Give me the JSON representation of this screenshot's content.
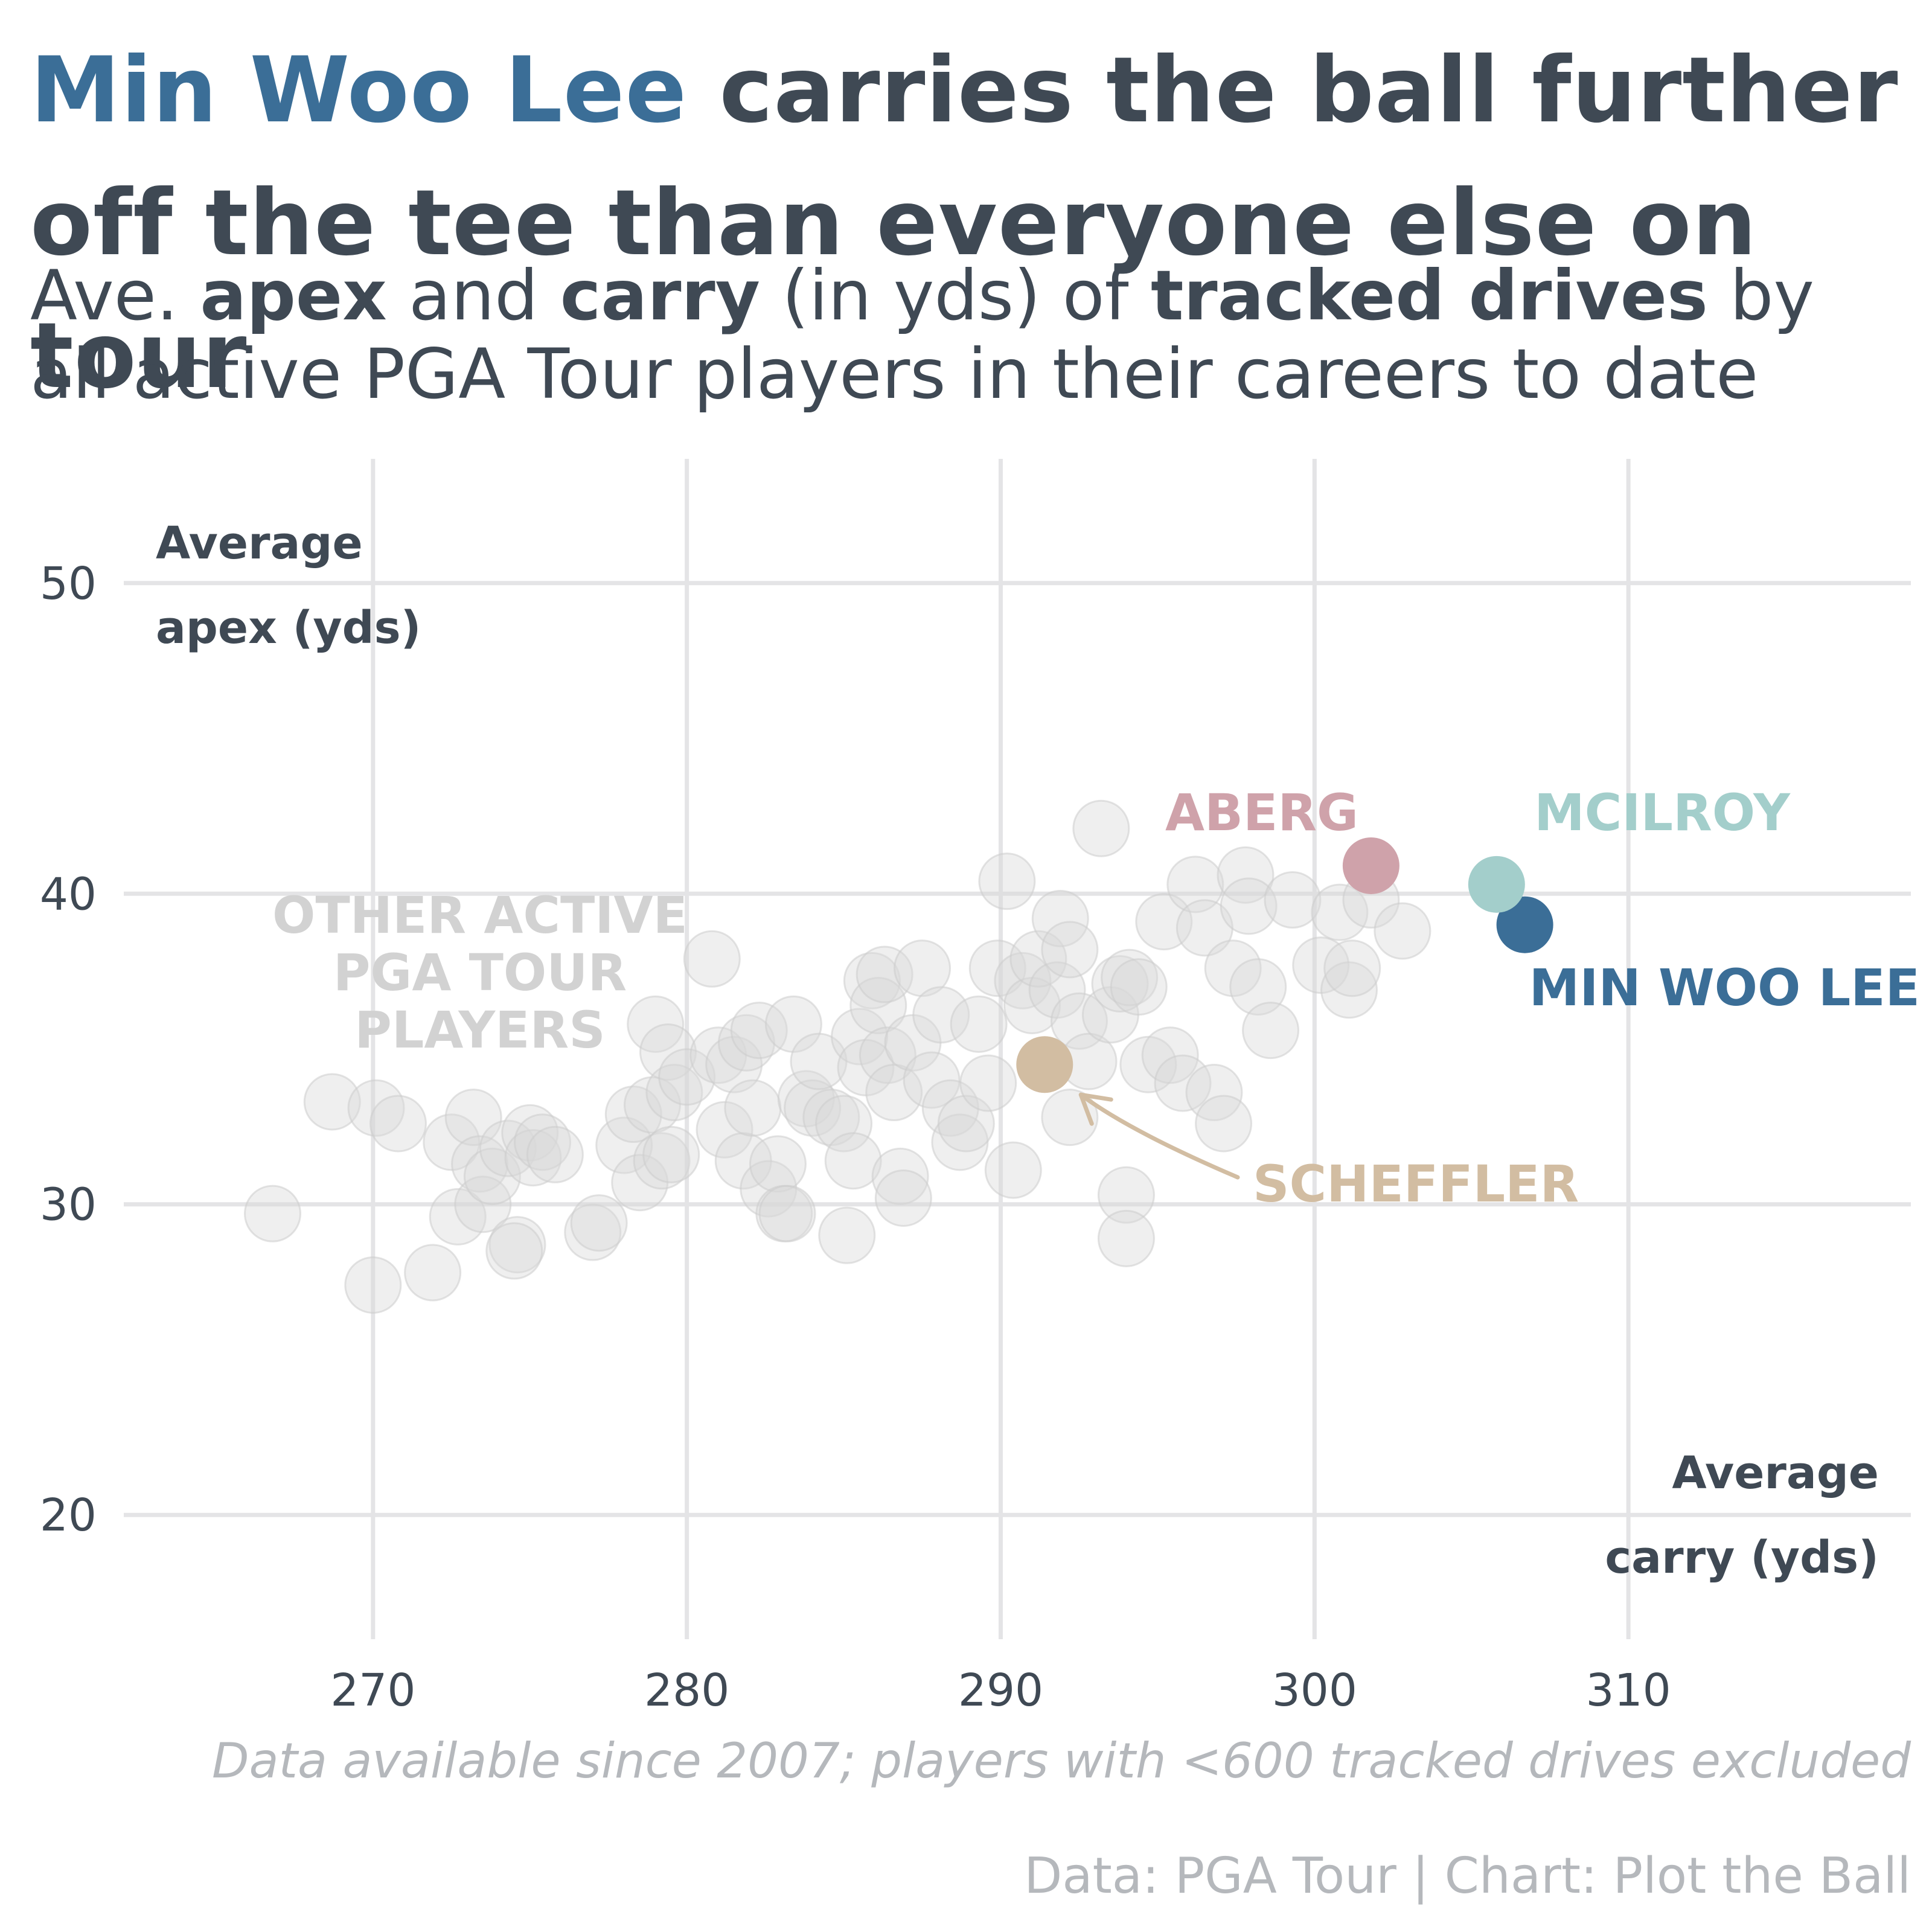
{
  "title": {
    "highlight": "Min Woo Lee",
    "rest": " carries the ball further off the tee than everyone else on tour"
  },
  "subtitle": {
    "p1": "Ave. ",
    "b1": "apex",
    "p2": " and ",
    "b2": "carry",
    "p3": " (in yds) of ",
    "b3": "tracked drives",
    "p4": " by all active PGA Tour players in their careers to date"
  },
  "caption": "Data available since 2007; players with <600 tracked drives excluded",
  "source": "Data: PGA Tour | Chart: Plot the Ball",
  "colors": {
    "text": "#3f4954",
    "grid": "#e4e4e6",
    "others": "#d9d9d9",
    "lee": "#3b6e97",
    "mcilroy": "#a3cecb",
    "aberg": "#cfa2aa",
    "scheffler": "#d2bda2"
  },
  "chart_data": {
    "type": "scatter",
    "xlabel_line1": "Average",
    "xlabel_line2": "carry (yds)",
    "ylabel_line1": "Average",
    "ylabel_line2": "apex (yds)",
    "xlim": [
      261,
      319
    ],
    "ylim": [
      16,
      54
    ],
    "x_ticks": [
      270,
      280,
      290,
      300,
      310
    ],
    "y_ticks": [
      20,
      30,
      40,
      50
    ],
    "grid": true,
    "others_label": [
      "OTHER ACTIVE",
      "PGA TOUR",
      "PLAYERS"
    ],
    "others": [
      [
        266.8,
        29.7
      ],
      [
        268.7,
        33.3
      ],
      [
        270.1,
        33.1
      ],
      [
        270.8,
        32.6
      ],
      [
        270.0,
        27.4
      ],
      [
        271.9,
        27.8
      ],
      [
        272.5,
        32.0
      ],
      [
        272.7,
        29.6
      ],
      [
        273.2,
        32.8
      ],
      [
        273.4,
        31.3
      ],
      [
        273.5,
        30.0
      ],
      [
        273.8,
        30.9
      ],
      [
        274.3,
        31.8
      ],
      [
        274.6,
        28.7
      ],
      [
        274.5,
        28.5
      ],
      [
        275.0,
        32.3
      ],
      [
        275.1,
        31.5
      ],
      [
        275.4,
        32.0
      ],
      [
        275.8,
        31.6
      ],
      [
        277.0,
        29.1
      ],
      [
        277.2,
        29.4
      ],
      [
        278.0,
        31.9
      ],
      [
        278.3,
        32.9
      ],
      [
        278.5,
        30.7
      ],
      [
        278.9,
        33.2
      ],
      [
        279.0,
        35.8
      ],
      [
        279.2,
        31.4
      ],
      [
        279.4,
        34.9
      ],
      [
        279.6,
        33.6
      ],
      [
        279.5,
        31.6
      ],
      [
        280.0,
        34.1
      ],
      [
        280.8,
        37.9
      ],
      [
        281.0,
        34.8
      ],
      [
        281.2,
        32.4
      ],
      [
        281.5,
        34.5
      ],
      [
        281.9,
        35.2
      ],
      [
        281.8,
        31.4
      ],
      [
        282.1,
        33.1
      ],
      [
        282.3,
        35.6
      ],
      [
        282.6,
        30.5
      ],
      [
        282.9,
        31.3
      ],
      [
        283.1,
        29.7
      ],
      [
        283.2,
        29.7
      ],
      [
        283.4,
        35.8
      ],
      [
        283.8,
        33.4
      ],
      [
        284.0,
        33.1
      ],
      [
        284.2,
        34.6
      ],
      [
        284.6,
        32.8
      ],
      [
        285.0,
        32.6
      ],
      [
        285.1,
        29.0
      ],
      [
        285.3,
        31.4
      ],
      [
        285.5,
        35.4
      ],
      [
        285.7,
        34.4
      ],
      [
        285.9,
        37.2
      ],
      [
        286.1,
        36.4
      ],
      [
        286.3,
        37.4
      ],
      [
        286.4,
        34.8
      ],
      [
        286.6,
        33.6
      ],
      [
        286.8,
        30.9
      ],
      [
        286.9,
        30.2
      ],
      [
        287.2,
        35.2
      ],
      [
        287.5,
        37.6
      ],
      [
        287.8,
        34.0
      ],
      [
        288.1,
        36.1
      ],
      [
        288.4,
        33.1
      ],
      [
        288.7,
        32.0
      ],
      [
        288.9,
        32.6
      ],
      [
        289.3,
        35.8
      ],
      [
        289.6,
        33.9
      ],
      [
        289.9,
        37.6
      ],
      [
        290.2,
        40.4
      ],
      [
        290.4,
        31.1
      ],
      [
        290.7,
        37.2
      ],
      [
        291.0,
        36.4
      ],
      [
        291.2,
        37.9
      ],
      [
        291.8,
        36.9
      ],
      [
        291.9,
        39.2
      ],
      [
        292.2,
        38.2
      ],
      [
        292.5,
        35.9
      ],
      [
        292.8,
        34.6
      ],
      [
        293.2,
        42.1
      ],
      [
        293.5,
        36.1
      ],
      [
        293.8,
        37.1
      ],
      [
        294.0,
        30.3
      ],
      [
        294.1,
        37.3
      ],
      [
        294.4,
        37.0
      ],
      [
        294.7,
        34.5
      ],
      [
        295.2,
        39.1
      ],
      [
        295.4,
        34.8
      ],
      [
        295.8,
        33.9
      ],
      [
        296.2,
        40.3
      ],
      [
        296.5,
        38.9
      ],
      [
        296.8,
        33.6
      ],
      [
        297.1,
        32.6
      ],
      [
        297.4,
        37.6
      ],
      [
        297.8,
        40.6
      ],
      [
        297.9,
        39.6
      ],
      [
        298.2,
        37.0
      ],
      [
        298.6,
        35.6
      ],
      [
        299.3,
        39.8
      ],
      [
        300.2,
        37.7
      ],
      [
        300.8,
        39.4
      ],
      [
        301.1,
        36.9
      ],
      [
        301.2,
        37.6
      ],
      [
        301.8,
        39.8
      ],
      [
        302.8,
        38.8
      ],
      [
        294.0,
        28.9
      ],
      [
        292.2,
        32.8
      ]
    ],
    "highlighted": [
      {
        "name": "MIN WOO LEE",
        "x": 306.7,
        "y": 39.0,
        "color": "#3b6e97"
      },
      {
        "name": "MCILROY",
        "x": 305.8,
        "y": 40.3,
        "color": "#a3cecb"
      },
      {
        "name": "ABERG",
        "x": 301.8,
        "y": 40.9,
        "color": "#cfa2aa"
      },
      {
        "name": "SCHEFFLER",
        "x": 291.4,
        "y": 34.5,
        "color": "#d2bda2"
      }
    ]
  }
}
